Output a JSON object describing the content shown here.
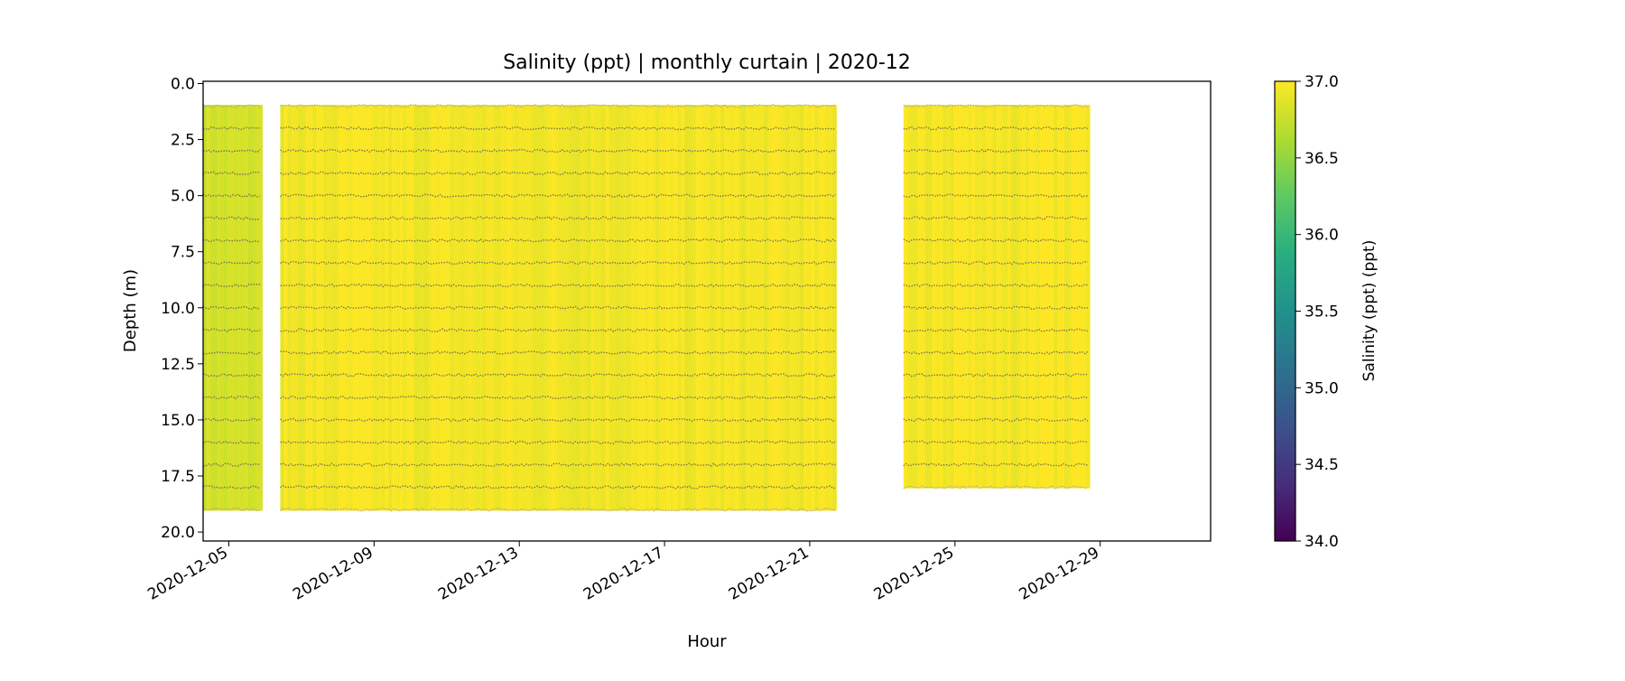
{
  "chart_data": {
    "type": "heatmap",
    "title": "Salinity (ppt) | monthly curtain | 2020-12",
    "xlabel": "Hour",
    "ylabel": "Depth (m)",
    "colorbar_label": "Salinity (ppt) (ppt)",
    "colormap": "viridis",
    "clim": [
      34.0,
      37.0
    ],
    "colorbar_ticks": [
      "34.0",
      "34.5",
      "35.0",
      "35.5",
      "36.0",
      "36.5",
      "37.0"
    ],
    "xlim": [
      "2020-12-04T07:00",
      "2021-01-01T01:00"
    ],
    "ylim": [
      20.4,
      -0.1
    ],
    "y_inverted": true,
    "x_ticks": [
      "2020-12-05",
      "2020-12-09",
      "2020-12-13",
      "2020-12-17",
      "2020-12-21",
      "2020-12-25",
      "2020-12-29"
    ],
    "y_ticks": [
      "0.0",
      "2.5",
      "5.0",
      "7.5",
      "10.0",
      "12.5",
      "15.0",
      "17.5",
      "20.0"
    ],
    "grid": false,
    "sample_marker_color": "#555555",
    "segments": [
      {
        "start": "2020-12-04T07:00",
        "end": "2020-12-05T22:00",
        "depth_min": 1,
        "depth_max": 19,
        "salinity_typical": 36.8
      },
      {
        "start": "2020-12-06T10:00",
        "end": "2020-12-21T17:30",
        "depth_min": 1,
        "depth_max": 19,
        "salinity_typical": 36.95
      },
      {
        "start": "2020-12-23T14:00",
        "end": "2020-12-28T17:00",
        "depth_min": 1,
        "depth_max": 18,
        "salinity_typical": 36.97
      }
    ]
  }
}
